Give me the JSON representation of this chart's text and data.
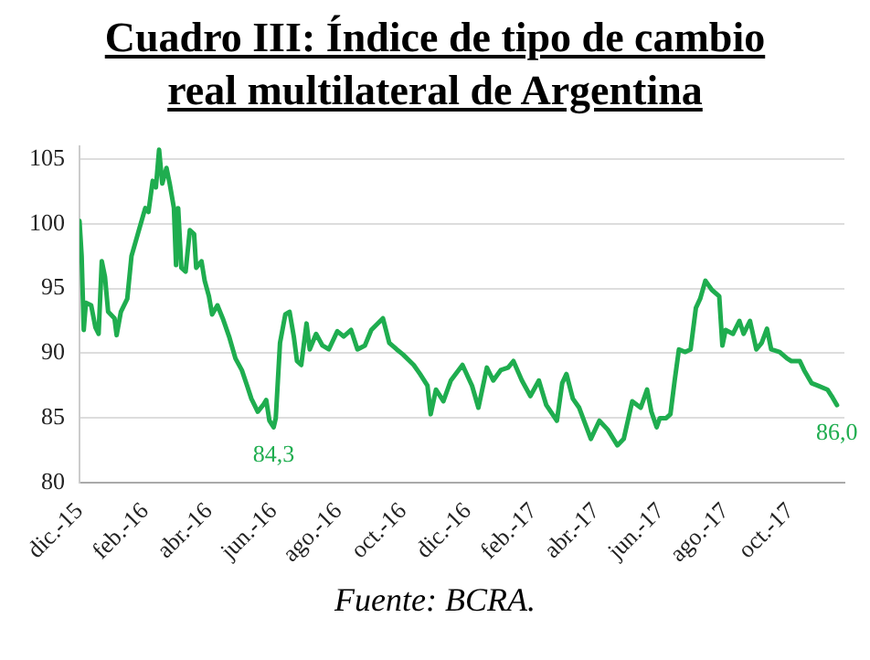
{
  "chart_data": {
    "type": "line",
    "title": "Cuadro III: Índice de tipo de cambio real multilateral de Argentina",
    "x": [
      "2015-12-01",
      "2015-12-03",
      "2015-12-05",
      "2015-12-07",
      "2015-12-12",
      "2015-12-16",
      "2015-12-19",
      "2015-12-22",
      "2015-12-25",
      "2015-12-28",
      "2016-01-03",
      "2016-01-05",
      "2016-01-09",
      "2016-01-15",
      "2016-01-19",
      "2016-01-26",
      "2016-02-01",
      "2016-02-04",
      "2016-02-08",
      "2016-02-11",
      "2016-02-14",
      "2016-02-17",
      "2016-02-21",
      "2016-02-24",
      "2016-02-28",
      "2016-03-01",
      "2016-03-03",
      "2016-03-06",
      "2016-03-10",
      "2016-03-14",
      "2016-03-18",
      "2016-03-20",
      "2016-03-25",
      "2016-03-28",
      "2016-04-01",
      "2016-04-04",
      "2016-04-09",
      "2016-04-14",
      "2016-04-20",
      "2016-04-26",
      "2016-05-02",
      "2016-05-07",
      "2016-05-11",
      "2016-05-17",
      "2016-05-22",
      "2016-05-25",
      "2016-05-28",
      "2016-06-01",
      "2016-06-03",
      "2016-06-07",
      "2016-06-12",
      "2016-06-16",
      "2016-06-20",
      "2016-06-23",
      "2016-06-27",
      "2016-07-02",
      "2016-07-05",
      "2016-07-11",
      "2016-07-17",
      "2016-07-23",
      "2016-07-31",
      "2016-08-06",
      "2016-08-13",
      "2016-08-19",
      "2016-08-26",
      "2016-09-01",
      "2016-09-12",
      "2016-09-18",
      "2016-09-25",
      "2016-10-01",
      "2016-10-11",
      "2016-10-17",
      "2016-10-24",
      "2016-10-27",
      "2016-11-01",
      "2016-11-08",
      "2016-11-15",
      "2016-11-26",
      "2016-12-05",
      "2016-12-11",
      "2016-12-19",
      "2016-12-25",
      "2017-01-01",
      "2017-01-08",
      "2017-01-13",
      "2017-01-21",
      "2017-01-29",
      "2017-02-06",
      "2017-02-13",
      "2017-02-23",
      "2017-02-28",
      "2017-03-04",
      "2017-03-10",
      "2017-03-16",
      "2017-03-27",
      "2017-04-04",
      "2017-04-12",
      "2017-04-21",
      "2017-04-27",
      "2017-05-05",
      "2017-05-13",
      "2017-05-19",
      "2017-05-23",
      "2017-05-28",
      "2017-05-31",
      "2017-06-06",
      "2017-06-10",
      "2017-06-14",
      "2017-06-18",
      "2017-06-24",
      "2017-06-29",
      "2017-07-04",
      "2017-07-08",
      "2017-07-13",
      "2017-07-19",
      "2017-07-26",
      "2017-07-29",
      "2017-08-01",
      "2017-08-08",
      "2017-08-14",
      "2017-08-18",
      "2017-08-24",
      "2017-08-30",
      "2017-09-04",
      "2017-09-09",
      "2017-09-13",
      "2017-09-21",
      "2017-09-28",
      "2017-10-02",
      "2017-10-10",
      "2017-10-14",
      "2017-10-21",
      "2017-10-27",
      "2017-11-05",
      "2017-11-09",
      "2017-11-14"
    ],
    "series": [
      {
        "color": "#1fad4f",
        "values": [
          100.2,
          97.5,
          91.8,
          93.9,
          93.7,
          92,
          91.5,
          97.1,
          95.9,
          93.2,
          92.7,
          91.4,
          93.2,
          94.2,
          97.5,
          99.5,
          101.2,
          100.9,
          103.3,
          102.8,
          105.7,
          103.1,
          104.3,
          103.1,
          101.2,
          96.8,
          101.2,
          96.6,
          96.3,
          99.5,
          99.2,
          96.6,
          97.1,
          95.6,
          94.4,
          93,
          93.7,
          92.7,
          91.3,
          89.6,
          88.7,
          87.5,
          86.5,
          85.5,
          86,
          86.4,
          84.8,
          84.3,
          85,
          90.8,
          93,
          93.2,
          91.3,
          89.4,
          89.1,
          92.3,
          90.3,
          91.5,
          90.6,
          90.3,
          91.7,
          91.3,
          91.8,
          90.3,
          90.6,
          91.8,
          92.7,
          90.8,
          90.3,
          89.9,
          89.1,
          88.4,
          87.5,
          85.3,
          87.2,
          86.3,
          87.9,
          89.1,
          87.5,
          85.8,
          88.9,
          87.9,
          88.7,
          88.9,
          89.4,
          87.9,
          86.7,
          87.9,
          86,
          84.8,
          87.7,
          88.4,
          86.5,
          85.8,
          83.4,
          84.8,
          84.1,
          82.9,
          83.4,
          86.3,
          85.8,
          87.2,
          85.5,
          84.3,
          85,
          85,
          85.3,
          87.9,
          90.3,
          90.1,
          90.3,
          93.5,
          94.2,
          95.6,
          94.9,
          94.4,
          90.6,
          91.8,
          91.5,
          92.5,
          91.5,
          92.5,
          90.3,
          90.8,
          91.9,
          90.3,
          90.1,
          89.6,
          89.4,
          89.4,
          88.7,
          87.7,
          87.5,
          87.2,
          86.7,
          86
        ]
      }
    ],
    "xlim": [
      "2015-12-01",
      "2017-11-21"
    ],
    "xticks": [
      {
        "value": "2015-12-01",
        "label": "dic.-15"
      },
      {
        "value": "2016-02-01",
        "label": "feb.-16"
      },
      {
        "value": "2016-04-01",
        "label": "abr.-16"
      },
      {
        "value": "2016-06-01",
        "label": "jun.-16"
      },
      {
        "value": "2016-08-01",
        "label": "ago.-16"
      },
      {
        "value": "2016-10-01",
        "label": "oct.-16"
      },
      {
        "value": "2016-12-01",
        "label": "dic.-16"
      },
      {
        "value": "2017-02-01",
        "label": "feb.-17"
      },
      {
        "value": "2017-04-01",
        "label": "abr.-17"
      },
      {
        "value": "2017-06-01",
        "label": "jun.-17"
      },
      {
        "value": "2017-08-01",
        "label": "ago.-17"
      },
      {
        "value": "2017-10-01",
        "label": "oct.-17"
      }
    ],
    "ylim": [
      80,
      106
    ],
    "yticks": [
      80,
      85,
      90,
      95,
      100,
      105
    ],
    "grid": "y",
    "marker": "none",
    "line_style": "solid",
    "annotations": [
      {
        "text": "84,3",
        "x": "2016-06-01",
        "y": 84.3
      },
      {
        "text": "86,0",
        "x": "2017-11-14",
        "y": 86
      },
      "Fuente: BCRA."
    ]
  }
}
